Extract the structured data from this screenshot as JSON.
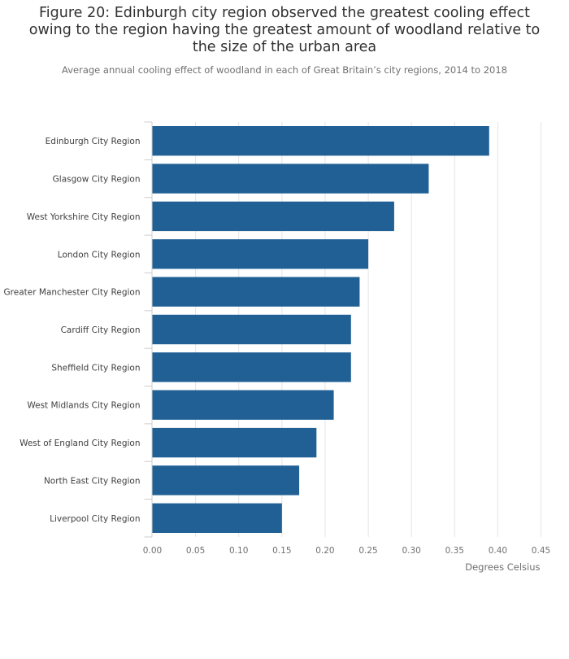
{
  "chart_data": {
    "type": "bar",
    "orientation": "horizontal",
    "title": "Figure 20: Edinburgh city region observed the greatest cooling effect owing to the region having the greatest amount of woodland relative to the size of the urban area",
    "subtitle": "Average annual cooling effect of woodland in each of Great Britain’s city regions, 2014 to 2018",
    "categories": [
      "Edinburgh City Region",
      "Glasgow City Region",
      "West Yorkshire City Region",
      "London City Region",
      "Greater Manchester City Region",
      "Cardiff City Region",
      "Sheffield City Region",
      "West Midlands City Region",
      "West of England City Region",
      "North East City Region",
      "Liverpool City Region"
    ],
    "values": [
      0.39,
      0.32,
      0.28,
      0.25,
      0.24,
      0.23,
      0.23,
      0.21,
      0.19,
      0.17,
      0.15
    ],
    "xlabel": "Degrees Celsius",
    "ylabel": "",
    "xlim": [
      0,
      0.45
    ],
    "xticks": [
      "0.00",
      "0.05",
      "0.10",
      "0.15",
      "0.20",
      "0.25",
      "0.30",
      "0.35",
      "0.40",
      "0.45"
    ],
    "grid": true,
    "bar_color": "#206095"
  }
}
